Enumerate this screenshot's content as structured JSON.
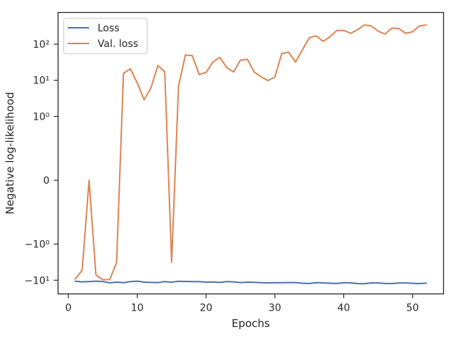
{
  "chart_data": {
    "type": "line",
    "xlabel": "Epochs",
    "ylabel": "Negative log-likelihood",
    "y_scale": "symlog",
    "xlim": [
      -1.5,
      54.5
    ],
    "x_ticks": [
      0,
      10,
      20,
      30,
      40,
      50
    ],
    "x_tick_labels": [
      "0",
      "10",
      "20",
      "30",
      "40",
      "50"
    ],
    "y_ticks": [
      -10,
      -1,
      0,
      1,
      10,
      100
    ],
    "y_tick_labels": [
      "−10¹",
      "−10⁰",
      "0",
      "10⁰",
      "10¹",
      "10²"
    ],
    "legend_position": "top-left",
    "legend": [
      "Loss",
      "Val. loss"
    ],
    "series": [
      {
        "name": "Loss",
        "color": "#4c72b0",
        "x": [
          1,
          2,
          3,
          4,
          5,
          6,
          7,
          8,
          9,
          10,
          11,
          12,
          13,
          14,
          15,
          16,
          17,
          18,
          19,
          20,
          21,
          22,
          23,
          24,
          25,
          26,
          27,
          28,
          29,
          30,
          31,
          32,
          33,
          34,
          35,
          36,
          37,
          38,
          39,
          40,
          41,
          42,
          43,
          44,
          45,
          46,
          47,
          48,
          49,
          50,
          51,
          52
        ],
        "values": [
          -10.7,
          -11.1,
          -10.9,
          -10.6,
          -10.9,
          -11.8,
          -11.3,
          -11.7,
          -10.9,
          -10.6,
          -11.3,
          -11.5,
          -11.6,
          -10.9,
          -11.3,
          -10.7,
          -10.8,
          -10.9,
          -10.9,
          -11.3,
          -11.2,
          -11.5,
          -10.9,
          -11.1,
          -11.6,
          -11.3,
          -11.4,
          -11.7,
          -11.8,
          -11.7,
          -11.7,
          -11.6,
          -11.6,
          -12.1,
          -12.3,
          -11.7,
          -11.8,
          -12.1,
          -12.3,
          -11.7,
          -11.8,
          -12.4,
          -12.5,
          -11.8,
          -11.9,
          -12.3,
          -12.4,
          -11.9,
          -11.9,
          -12.2,
          -12.4,
          -12.0
        ]
      },
      {
        "name": "Val. loss",
        "color": "#dd8452",
        "x": [
          1,
          2,
          3,
          4,
          5,
          6,
          7,
          8,
          9,
          10,
          11,
          12,
          13,
          14,
          15,
          16,
          17,
          18,
          19,
          20,
          21,
          22,
          23,
          24,
          25,
          26,
          27,
          28,
          29,
          30,
          31,
          32,
          33,
          34,
          35,
          36,
          37,
          38,
          39,
          40,
          41,
          42,
          43,
          44,
          45,
          46,
          47,
          48,
          49,
          50,
          51,
          52
        ],
        "values": [
          -9.3,
          -5.3,
          0,
          -7.1,
          -9.7,
          -9.6,
          -3.3,
          15.5,
          20.8,
          8.5,
          2.9,
          6.2,
          25.6,
          17.1,
          -3.2,
          6.8,
          50,
          48,
          14.5,
          16.5,
          32,
          43,
          22.5,
          17,
          36,
          38,
          17,
          12.5,
          9.8,
          12.3,
          55,
          60,
          32,
          70,
          150,
          170,
          120,
          160,
          240,
          240,
          200,
          250,
          340,
          320,
          230,
          190,
          280,
          270,
          200,
          220,
          320,
          340
        ]
      }
    ]
  }
}
